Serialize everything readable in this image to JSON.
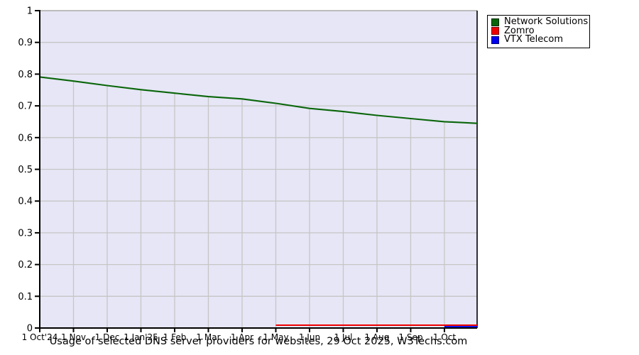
{
  "chart_data": {
    "type": "line",
    "title": "Usage of selected DNS server providers for websites, 29 Oct 2025, W3Techs.com",
    "xlabel": "",
    "ylabel": "",
    "xlim": [
      0,
      12.97
    ],
    "ylim": [
      0,
      1
    ],
    "grid": true,
    "legend_position": "top-right",
    "plot_bg_color": "#e6e6f6",
    "grid_color": "#c6c6c6",
    "axis_color": "#000000",
    "frame_top_color": "#aaaaaa",
    "x_axis": {
      "tick_values": [
        0,
        1,
        2,
        3,
        4,
        5,
        6,
        7,
        8,
        9,
        10,
        11,
        12
      ],
      "tick_labels": [
        "1 Oct'24",
        "1 Nov",
        "1 Dec",
        "1 Jan'25",
        "1 Feb",
        "1 Mar",
        "1 Apr",
        "1 May",
        "1 Jun",
        "1 Jul",
        "1 Aug",
        "1 Sep",
        "1 Oct"
      ]
    },
    "y_axis": {
      "tick_values": [
        0,
        0.1,
        0.2,
        0.3,
        0.4,
        0.5,
        0.6,
        0.7,
        0.8,
        0.9,
        1
      ],
      "tick_labels": [
        "0",
        "0.1",
        "0.2",
        "0.3",
        "0.4",
        "0.5",
        "0.6",
        "0.7",
        "0.8",
        "0.9",
        "1"
      ]
    },
    "series": [
      {
        "name": "Network Solutions",
        "color": "#0a660a",
        "swatch_border": "#002800",
        "x": [
          0,
          1,
          2,
          3,
          4,
          5,
          6,
          7,
          8,
          9,
          10,
          11,
          12,
          12.97
        ],
        "values": [
          0.791,
          0.778,
          0.764,
          0.751,
          0.74,
          0.729,
          0.722,
          0.708,
          0.692,
          0.682,
          0.67,
          0.66,
          0.65,
          0.645
        ]
      },
      {
        "name": "Zomro",
        "color": "#ee0000",
        "swatch_border": "#7a0000",
        "x": [
          7,
          8,
          9,
          10,
          11,
          12,
          12.97
        ],
        "values": [
          0.009,
          0.009,
          0.009,
          0.009,
          0.009,
          0.009,
          0.009
        ]
      },
      {
        "name": "VTX Telecom",
        "color": "#0000ee",
        "swatch_border": "#00007a",
        "x": [
          12,
          12.97
        ],
        "values": [
          0.004,
          0.004
        ]
      }
    ]
  }
}
